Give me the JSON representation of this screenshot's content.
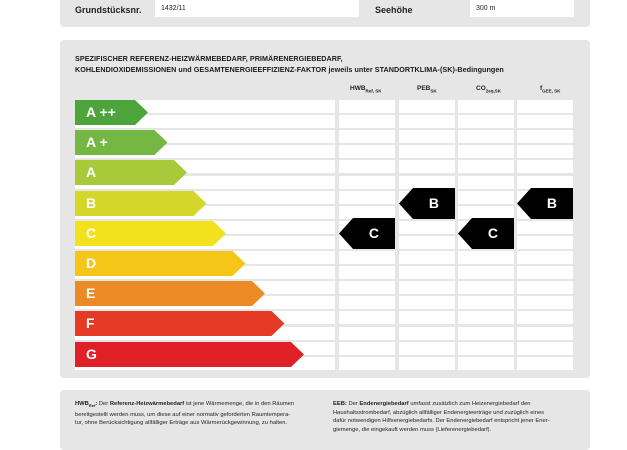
{
  "top": {
    "grundstuck_label": "Grundstücksnr.",
    "grundstuck_value": "1432/11",
    "seehoehe_label": "Seehöhe",
    "seehoehe_value": "300 m"
  },
  "heading": {
    "line1": "SPEZIFISCHER REFERENZ-HEIZWÄRMEBEDARF, PRIMÄRENERGIEBEDARF,",
    "line2": "KOHLENDIOXIDEMISSIONEN und GESAMTENERGIEEFFIZIENZ-FAKTOR jeweils unter STANDORTKLIMA-(SK)-Bedingungen"
  },
  "columns": [
    {
      "main": "HWB",
      "sub": "Ref, SK"
    },
    {
      "main": "PEB",
      "sub": "SK"
    },
    {
      "main": "CO",
      "sub": "2eq,SK"
    },
    {
      "main": "f",
      "sub": "GEE, SK"
    }
  ],
  "scale": [
    {
      "label": "A ++",
      "color": "#4da43a"
    },
    {
      "label": "A +",
      "color": "#74b843"
    },
    {
      "label": "A",
      "color": "#a8c93a"
    },
    {
      "label": "B",
      "color": "#d4d72a"
    },
    {
      "label": "C",
      "color": "#f4e11e"
    },
    {
      "label": "D",
      "color": "#f5c517"
    },
    {
      "label": "E",
      "color": "#ec8a25"
    },
    {
      "label": "F",
      "color": "#e53a26"
    },
    {
      "label": "G",
      "color": "#e11f26"
    }
  ],
  "ratings": [
    {
      "column": "HWB",
      "class": "C"
    },
    {
      "column": "PEB",
      "class": "B"
    },
    {
      "column": "CO2",
      "class": "C"
    },
    {
      "column": "fGEE",
      "class": "B"
    }
  ],
  "footer": {
    "left_term": "HWB",
    "left_term_sub": "Ref",
    "left_bold": "Referenz-Heizwärmebedarf",
    "left_line1_rest": " ist jene Wärmemenge, die in den Räumen",
    "left_line2": "bereitgestellt werden muss, um diese auf einer normativ geforderten Raumtempera-",
    "left_line3": "tur, ohne Berücksichtigung allfälliger Erträge aus Wärmerückgewinnung, zu halten.",
    "right_term": "EEB:",
    "right_bold": "Endenergiebedarf",
    "right_line1_rest": " umfasst zusätzlich zum Heizenergiebedarf den",
    "right_line2": "Haushaltsstrombedarf, abzüglich allfälliger Endenergieerträge und zuzüglich eines",
    "right_line3": "dafür notwendigen Hilfsenergiebedarfs. Der Endenergiebedarf entspricht jener Ener-",
    "right_line4": "giemenge, die eingekauft werden muss (Lieferenergiebedarf)."
  }
}
